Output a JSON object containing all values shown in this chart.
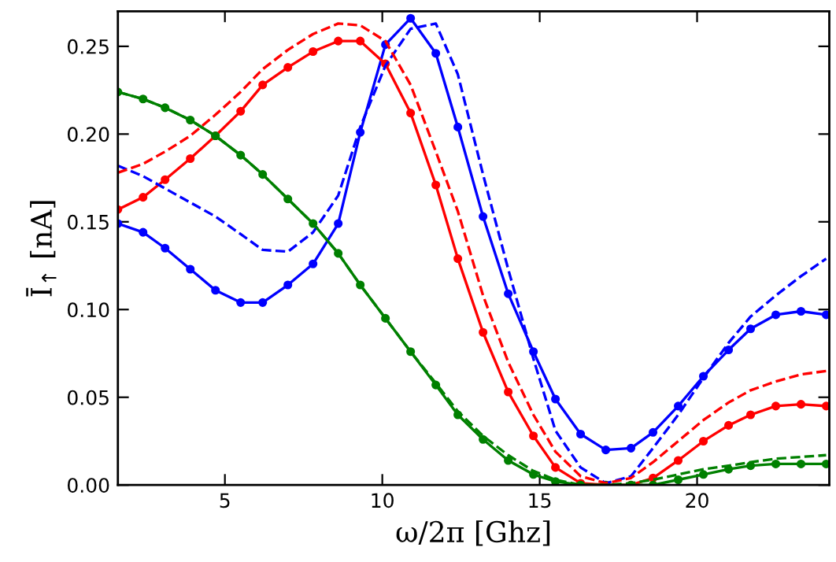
{
  "chart_data": {
    "type": "line",
    "xlabel": "ω/2π [Ghz]",
    "ylabel": "Ī$_{↑}$ [nA]",
    "x": [
      1.6,
      2.4,
      3.1,
      3.9,
      4.7,
      5.5,
      6.2,
      7.0,
      7.8,
      8.6,
      9.3,
      10.1,
      10.9,
      11.7,
      12.4,
      13.2,
      14.0,
      14.8,
      15.5,
      16.3,
      17.1,
      17.9,
      18.6,
      19.4,
      20.2,
      21.0,
      21.7,
      22.5,
      23.3,
      24.1
    ],
    "series": [
      {
        "color": "#0000ff",
        "marker": "circle",
        "line_style": "solid",
        "values": [
          0.149,
          0.144,
          0.135,
          0.123,
          0.111,
          0.104,
          0.104,
          0.114,
          0.126,
          0.149,
          0.201,
          0.251,
          0.266,
          0.246,
          0.204,
          0.153,
          0.109,
          0.076,
          0.049,
          0.029,
          0.02,
          0.021,
          0.03,
          0.045,
          0.062,
          0.077,
          0.089,
          0.097,
          0.099,
          0.097
        ]
      },
      {
        "color": "#ff0000",
        "marker": "circle",
        "line_style": "solid",
        "values": [
          0.157,
          0.164,
          0.174,
          0.186,
          0.199,
          0.213,
          0.228,
          0.238,
          0.247,
          0.253,
          0.253,
          0.24,
          0.212,
          0.171,
          0.129,
          0.087,
          0.053,
          0.028,
          0.01,
          0.001,
          0.0,
          0.0,
          0.004,
          0.014,
          0.025,
          0.034,
          0.04,
          0.045,
          0.046,
          0.045
        ]
      },
      {
        "color": "#008000",
        "marker": "circle",
        "line_style": "solid",
        "values": [
          0.224,
          0.22,
          0.215,
          0.208,
          0.199,
          0.188,
          0.177,
          0.163,
          0.149,
          0.132,
          0.114,
          0.095,
          0.076,
          0.057,
          0.04,
          0.026,
          0.014,
          0.006,
          0.002,
          0.0,
          0.0,
          0.0,
          0.0,
          0.003,
          0.006,
          0.009,
          0.011,
          0.012,
          0.012,
          0.012
        ]
      },
      {
        "color": "#0000ff",
        "marker": "none",
        "line_style": "dashed",
        "values": [
          0.182,
          0.176,
          0.169,
          0.161,
          0.153,
          0.143,
          0.134,
          0.133,
          0.144,
          0.165,
          0.204,
          0.239,
          0.26,
          0.263,
          0.234,
          0.177,
          0.123,
          0.072,
          0.031,
          0.01,
          0.001,
          0.005,
          0.021,
          0.04,
          0.061,
          0.081,
          0.096,
          0.108,
          0.119,
          0.129
        ]
      },
      {
        "color": "#ff0000",
        "marker": "none",
        "line_style": "dashed",
        "values": [
          0.178,
          0.183,
          0.19,
          0.199,
          0.211,
          0.224,
          0.237,
          0.248,
          0.257,
          0.263,
          0.262,
          0.253,
          0.228,
          0.19,
          0.156,
          0.108,
          0.07,
          0.04,
          0.019,
          0.005,
          0.001,
          0.004,
          0.013,
          0.025,
          0.037,
          0.047,
          0.054,
          0.059,
          0.063,
          0.065
        ]
      },
      {
        "color": "#008000",
        "marker": "none",
        "line_style": "dashed",
        "values": [
          0.224,
          0.22,
          0.215,
          0.208,
          0.199,
          0.188,
          0.177,
          0.163,
          0.149,
          0.132,
          0.114,
          0.095,
          0.076,
          0.058,
          0.042,
          0.028,
          0.017,
          0.008,
          0.003,
          0.0,
          0.0,
          0.001,
          0.003,
          0.006,
          0.009,
          0.011,
          0.013,
          0.015,
          0.016,
          0.017
        ]
      }
    ],
    "xlim": [
      1.6,
      24.2
    ],
    "ylim": [
      0,
      0.27
    ],
    "xticks": [
      5,
      10,
      15,
      20
    ],
    "yticks": [
      {
        "value": 0,
        "label": "0.00"
      },
      {
        "value": 0.05,
        "label": "0.05"
      },
      {
        "value": 0.1,
        "label": "0.10"
      },
      {
        "value": 0.15,
        "label": "0.15"
      },
      {
        "value": 0.2,
        "label": "0.20"
      },
      {
        "value": 0.25,
        "label": "0.25"
      }
    ],
    "grid": false
  }
}
